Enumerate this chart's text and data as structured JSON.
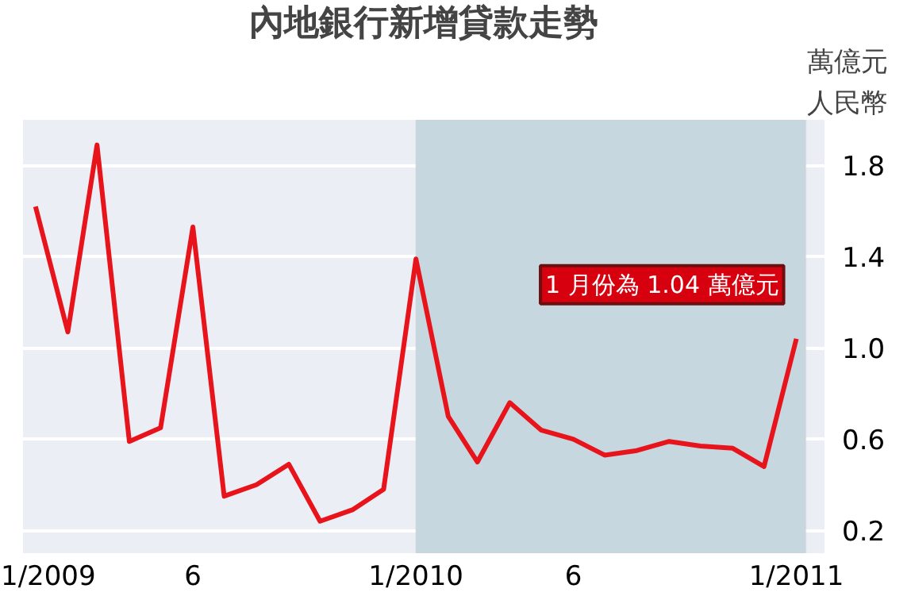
{
  "chart_data": {
    "type": "line",
    "title": "內地銀行新增貸款走勢",
    "ylabel": "萬億元人民幣",
    "x": [
      "2009-01",
      "2009-02",
      "2009-03",
      "2009-04",
      "2009-05",
      "2009-06",
      "2009-07",
      "2009-08",
      "2009-09",
      "2009-10",
      "2009-11",
      "2009-12",
      "2010-01",
      "2010-02",
      "2010-03",
      "2010-04",
      "2010-05",
      "2010-06",
      "2010-07",
      "2010-08",
      "2010-09",
      "2010-10",
      "2010-11",
      "2010-12",
      "2011-01"
    ],
    "series": [
      {
        "color": "#e8141b",
        "values": [
          1.62,
          1.07,
          1.89,
          0.59,
          0.65,
          1.53,
          0.35,
          0.4,
          0.49,
          0.24,
          0.29,
          0.38,
          1.39,
          0.7,
          0.5,
          0.76,
          0.64,
          0.6,
          0.53,
          0.55,
          0.59,
          0.57,
          0.56,
          0.48,
          1.04
        ]
      }
    ],
    "xlim": [
      "2008-12-20",
      "2011-01-28"
    ],
    "xticks": [
      {
        "value": "2009-01",
        "label": "1/2009"
      },
      {
        "value": "2009-06",
        "label": "6"
      },
      {
        "value": "2010-01",
        "label": "1/2010"
      },
      {
        "value": "2010-06",
        "label": "6"
      },
      {
        "value": "2011-01",
        "label": "1/2011"
      }
    ],
    "ylim": [
      0.1,
      2.0
    ],
    "yticks": [
      0.2,
      0.6,
      {
        "value": 1.0,
        "label": "1.0"
      },
      1.4,
      1.8
    ],
    "bands": [
      {
        "axis": "x",
        "from": "2010-01",
        "to": "2011-01-10",
        "color": "#c6d7df"
      }
    ],
    "annotations": [
      {
        "text": "1 月份為 1.04 萬億元",
        "x": "2011-01",
        "y": 1.04
      }
    ],
    "grid": "y",
    "line_style": "solid",
    "marker": "none"
  }
}
